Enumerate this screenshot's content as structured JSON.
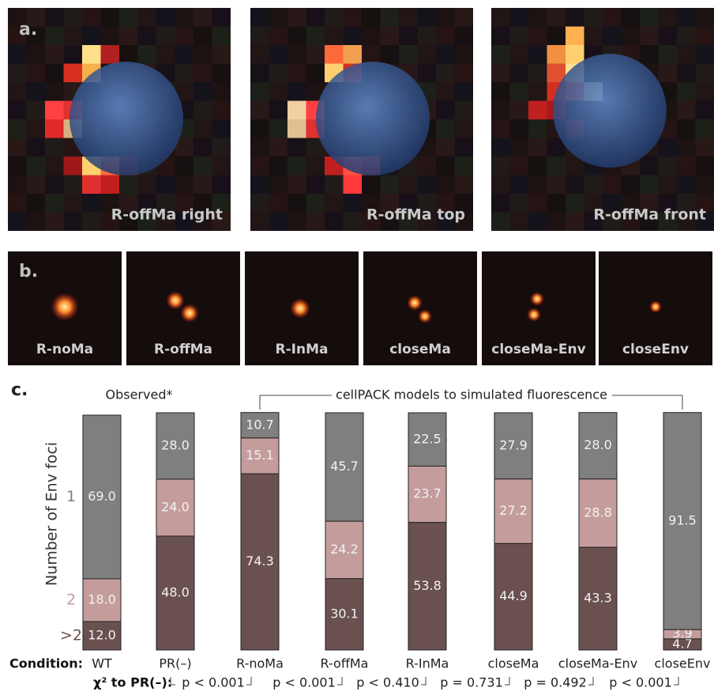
{
  "panel_a": {
    "label": "a.",
    "images": [
      {
        "caption": "R-offMa right"
      },
      {
        "caption": "R-offMa top"
      },
      {
        "caption": "R-offMa front"
      }
    ]
  },
  "panel_b": {
    "label": "b.",
    "images": [
      {
        "caption": "R-noMa"
      },
      {
        "caption": "R-offMa"
      },
      {
        "caption": "R-InMa"
      },
      {
        "caption": "closeMa"
      },
      {
        "caption": "closeMa-Env"
      },
      {
        "caption": "closeEnv"
      }
    ]
  },
  "chart_data": {
    "type": "bar",
    "stacked": true,
    "panel_label": "c.",
    "ylabel": "Number of Env foci",
    "categories_label": "Condition:",
    "categories": [
      "WT",
      "PR(–)",
      "R-noMa",
      "R-offMa",
      "R-InMa",
      "closeMa",
      "closeMa-Env",
      "closeEnv"
    ],
    "series": [
      {
        "name": ">2",
        "color": "#6b5050",
        "values": [
          12,
          48,
          74.3,
          30.1,
          53.8,
          44.9,
          43.3,
          4.7
        ],
        "value_labels": [
          "12.0",
          "48.0",
          "74.3",
          "30.1",
          "53.8",
          "44.9",
          "43.3",
          "4.7"
        ]
      },
      {
        "name": "2",
        "color": "#c59c9c",
        "values": [
          18,
          24,
          15.1,
          24.2,
          23.7,
          27.2,
          28.8,
          3.9
        ],
        "value_labels": [
          "18.0",
          "24.0",
          "15.1",
          "24.2",
          "23.7",
          "27.2",
          "28.8",
          "3.9"
        ]
      },
      {
        "name": "1",
        "color": "#7f7f7f",
        "values": [
          69,
          28,
          10.7,
          45.7,
          22.5,
          27.9,
          28,
          91.5
        ],
        "value_labels": [
          "69.0",
          "28.0",
          "10.7",
          "45.7",
          "22.5",
          "27.9",
          "28.0",
          "91.5"
        ]
      }
    ],
    "ylim": [
      0,
      100
    ],
    "group_labels": {
      "observed": "Observed*",
      "models": "cellPACK models to simulated fluorescence"
    },
    "comparison": {
      "label": "χ² to PR(–):",
      "values": [
        "p < 0.001",
        "p < 0.001",
        "p < 0.410",
        "p = 0.731",
        "p = 0.492",
        "p < 0.001"
      ]
    }
  }
}
